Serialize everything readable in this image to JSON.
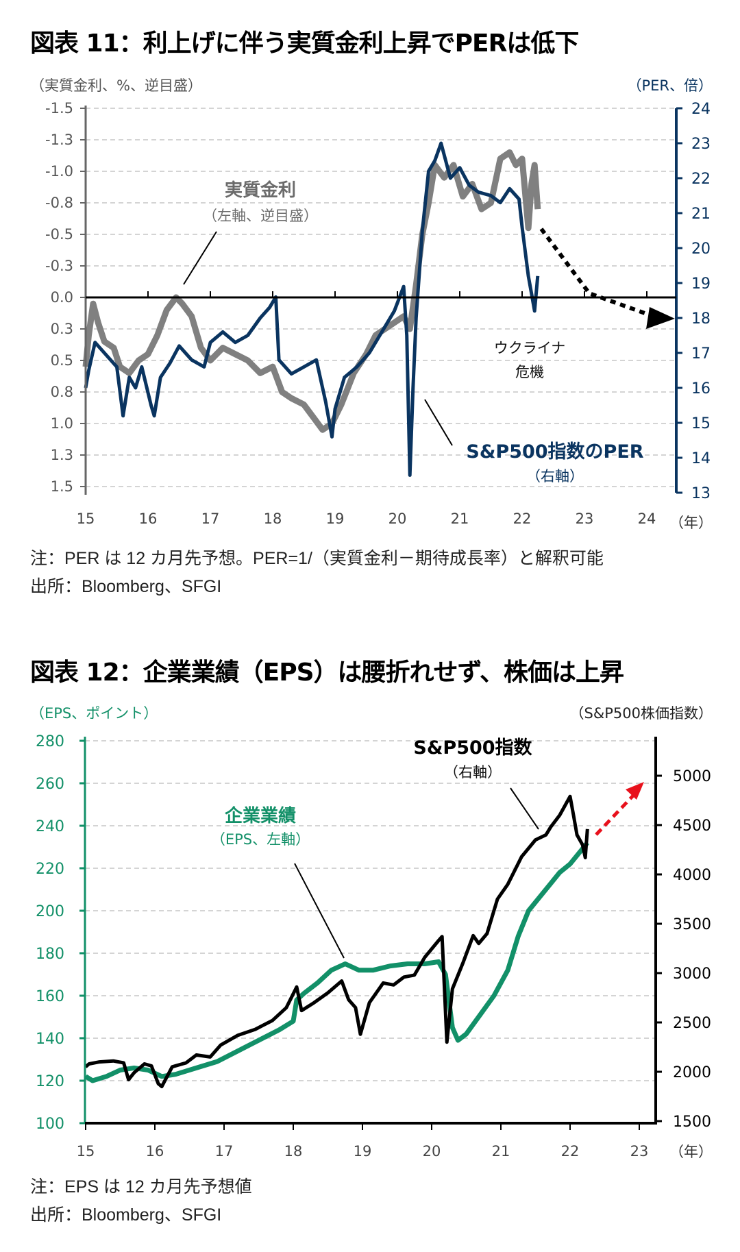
{
  "colors": {
    "real_rate": "#808080",
    "per": "#0a3460",
    "eps": "#129068",
    "sp500": "#000000",
    "arrow_red": "#e8111c",
    "grid": "#d4d4d4"
  },
  "chart_data": [
    {
      "type": "line",
      "title": "図表 11：利上げに伴う実質金利上昇でPERは低下",
      "ylabel_left": "（実質金利、%、逆目盛）",
      "ylabel_right": "（PER、倍）",
      "xlabel_unit": "（年）",
      "x_ticks": [
        "15",
        "16",
        "17",
        "18",
        "19",
        "20",
        "21",
        "22",
        "23",
        "24"
      ],
      "xlim": [
        2015,
        2024
      ],
      "y_left_ticks": [
        "-1.5",
        "-1.3",
        "-1.0",
        "-0.8",
        "-0.5",
        "-0.3",
        "0.0",
        "0.3",
        "0.5",
        "0.8",
        "1.0",
        "1.3",
        "1.5"
      ],
      "y_left_range": [
        -1.5,
        1.5
      ],
      "y_left_inverted": true,
      "y_right_ticks": [
        "24",
        "23",
        "22",
        "21",
        "20",
        "19",
        "18",
        "17",
        "16",
        "15",
        "14",
        "13"
      ],
      "y_right_range": [
        13,
        24
      ],
      "grid": true,
      "series": [
        {
          "name": "実質金利",
          "sub": "（左軸、逆目盛）",
          "axis": "left",
          "x": [
            2015.0,
            2015.05,
            2015.12,
            2015.2,
            2015.3,
            2015.45,
            2015.55,
            2015.7,
            2015.85,
            2016.0,
            2016.15,
            2016.3,
            2016.45,
            2016.55,
            2016.7,
            2016.85,
            2017.0,
            2017.2,
            2017.4,
            2017.6,
            2017.8,
            2018.0,
            2018.15,
            2018.3,
            2018.5,
            2018.65,
            2018.8,
            2018.95,
            2019.1,
            2019.3,
            2019.5,
            2019.65,
            2019.8,
            2019.95,
            2020.1,
            2020.2,
            2020.3,
            2020.4,
            2020.5,
            2020.6,
            2020.75,
            2020.9,
            2021.05,
            2021.2,
            2021.35,
            2021.5,
            2021.65,
            2021.8,
            2021.9,
            2022.0,
            2022.1,
            2022.15,
            2022.2,
            2022.25
          ],
          "values": [
            0.55,
            0.3,
            0.05,
            0.2,
            0.35,
            0.4,
            0.55,
            0.6,
            0.5,
            0.45,
            0.3,
            0.1,
            0.0,
            0.05,
            0.15,
            0.4,
            0.5,
            0.4,
            0.45,
            0.5,
            0.6,
            0.55,
            0.75,
            0.8,
            0.85,
            0.95,
            1.05,
            1.0,
            0.85,
            0.6,
            0.45,
            0.3,
            0.25,
            0.2,
            0.15,
            0.25,
            -0.1,
            -0.5,
            -0.75,
            -1.05,
            -0.95,
            -1.05,
            -0.8,
            -0.9,
            -0.7,
            -0.75,
            -1.1,
            -1.15,
            -1.05,
            -1.1,
            -0.55,
            -0.9,
            -1.05,
            -0.7
          ]
        },
        {
          "name": "S&P500指数のPER",
          "sub": "（右軸）",
          "axis": "right",
          "x": [
            2015.0,
            2015.05,
            2015.15,
            2015.3,
            2015.5,
            2015.6,
            2015.7,
            2015.8,
            2015.9,
            2016.05,
            2016.1,
            2016.2,
            2016.35,
            2016.5,
            2016.7,
            2016.9,
            2017.0,
            2017.2,
            2017.4,
            2017.6,
            2017.8,
            2017.95,
            2018.05,
            2018.1,
            2018.3,
            2018.5,
            2018.7,
            2018.85,
            2018.95,
            2019.0,
            2019.15,
            2019.35,
            2019.55,
            2019.75,
            2019.95,
            2020.1,
            2020.15,
            2020.2,
            2020.25,
            2020.3,
            2020.4,
            2020.5,
            2020.6,
            2020.7,
            2020.85,
            2021.0,
            2021.15,
            2021.3,
            2021.5,
            2021.65,
            2021.8,
            2021.95,
            2022.0,
            2022.1,
            2022.15,
            2022.2,
            2022.25
          ],
          "values": [
            16.0,
            16.5,
            17.3,
            17.0,
            16.6,
            15.2,
            16.3,
            16.0,
            16.6,
            15.5,
            15.2,
            16.3,
            16.7,
            17.2,
            16.8,
            16.6,
            17.3,
            17.6,
            17.3,
            17.5,
            18.0,
            18.3,
            18.6,
            16.8,
            16.4,
            16.6,
            16.8,
            15.6,
            14.6,
            15.4,
            16.3,
            16.6,
            17.0,
            17.6,
            18.2,
            18.9,
            17.5,
            13.5,
            16.0,
            18.0,
            20.5,
            22.2,
            22.5,
            23.0,
            22.0,
            22.3,
            21.8,
            21.6,
            21.5,
            21.3,
            21.7,
            21.4,
            20.6,
            19.2,
            18.7,
            18.2,
            19.2
          ]
        }
      ],
      "annotations": {
        "ukraine": "ウクライナ",
        "crisis": "危機"
      },
      "notes": [
        "注：PER は 12 カ月先予想。PER=1/（実質金利－期待成長率）と解釈可能",
        "出所：Bloomberg、SFGI"
      ]
    },
    {
      "type": "line",
      "title": "図表 12：企業業績（EPS）は腰折れせず、株価は上昇",
      "ylabel_left": "（EPS、ポイント）",
      "ylabel_right": "（S&P500株価指数）",
      "xlabel_unit": "（年）",
      "x_ticks": [
        "15",
        "16",
        "17",
        "18",
        "19",
        "20",
        "21",
        "22",
        "23"
      ],
      "xlim": [
        2015,
        2023
      ],
      "y_left_ticks": [
        "280",
        "260",
        "240",
        "220",
        "200",
        "180",
        "160",
        "140",
        "120",
        "100"
      ],
      "y_left_range": [
        100,
        280
      ],
      "y_right_ticks": [
        "5000",
        "4500",
        "4000",
        "3500",
        "3000",
        "2500",
        "2000",
        "1500"
      ],
      "y_right_range": [
        1500,
        5000
      ],
      "grid": true,
      "series": [
        {
          "name": "企業業績",
          "sub": "（EPS、左軸）",
          "axis": "left",
          "x": [
            2015.0,
            2015.1,
            2015.3,
            2015.5,
            2015.7,
            2015.9,
            2016.1,
            2016.3,
            2016.6,
            2016.9,
            2017.2,
            2017.5,
            2017.8,
            2018.0,
            2018.05,
            2018.15,
            2018.35,
            2018.55,
            2018.75,
            2018.95,
            2019.15,
            2019.4,
            2019.65,
            2019.9,
            2020.1,
            2020.2,
            2020.3,
            2020.38,
            2020.5,
            2020.7,
            2020.9,
            2021.1,
            2021.25,
            2021.4,
            2021.55,
            2021.7,
            2021.85,
            2022.0,
            2022.15,
            2022.25
          ],
          "values": [
            122,
            120,
            122,
            125,
            126,
            125,
            122,
            123,
            126,
            129,
            134,
            139,
            144,
            148,
            158,
            161,
            166,
            172,
            175,
            172,
            172,
            174,
            175,
            175,
            176,
            170,
            145,
            139,
            142,
            151,
            160,
            172,
            188,
            200,
            206,
            212,
            218,
            222,
            228,
            232
          ]
        },
        {
          "name": "S&P500指数",
          "sub": "（右軸）",
          "axis": "right",
          "x": [
            2015.0,
            2015.05,
            2015.2,
            2015.4,
            2015.55,
            2015.62,
            2015.7,
            2015.85,
            2015.95,
            2016.05,
            2016.1,
            2016.25,
            2016.45,
            2016.6,
            2016.8,
            2016.95,
            2017.2,
            2017.45,
            2017.7,
            2017.9,
            2018.05,
            2018.12,
            2018.3,
            2018.5,
            2018.7,
            2018.8,
            2018.9,
            2018.97,
            2019.1,
            2019.3,
            2019.45,
            2019.6,
            2019.75,
            2019.9,
            2020.1,
            2020.15,
            2020.22,
            2020.3,
            2020.45,
            2020.6,
            2020.68,
            2020.8,
            2020.95,
            2021.1,
            2021.3,
            2021.5,
            2021.65,
            2021.72,
            2021.85,
            2022.0,
            2022.05,
            2022.1,
            2022.18,
            2022.22,
            2022.25
          ],
          "values": [
            2050,
            2080,
            2100,
            2110,
            2090,
            1920,
            1990,
            2080,
            2060,
            1880,
            1850,
            2050,
            2090,
            2170,
            2150,
            2270,
            2370,
            2430,
            2520,
            2650,
            2860,
            2620,
            2700,
            2800,
            2920,
            2730,
            2650,
            2380,
            2700,
            2900,
            2880,
            2960,
            2980,
            3160,
            3330,
            3370,
            2300,
            2840,
            3100,
            3380,
            3300,
            3400,
            3750,
            3900,
            4180,
            4350,
            4400,
            4480,
            4600,
            4790,
            4600,
            4400,
            4300,
            4170,
            4460
          ]
        }
      ],
      "notes": [
        "注：EPS は 12 カ月先予想値",
        "出所：Bloomberg、SFGI"
      ]
    }
  ]
}
